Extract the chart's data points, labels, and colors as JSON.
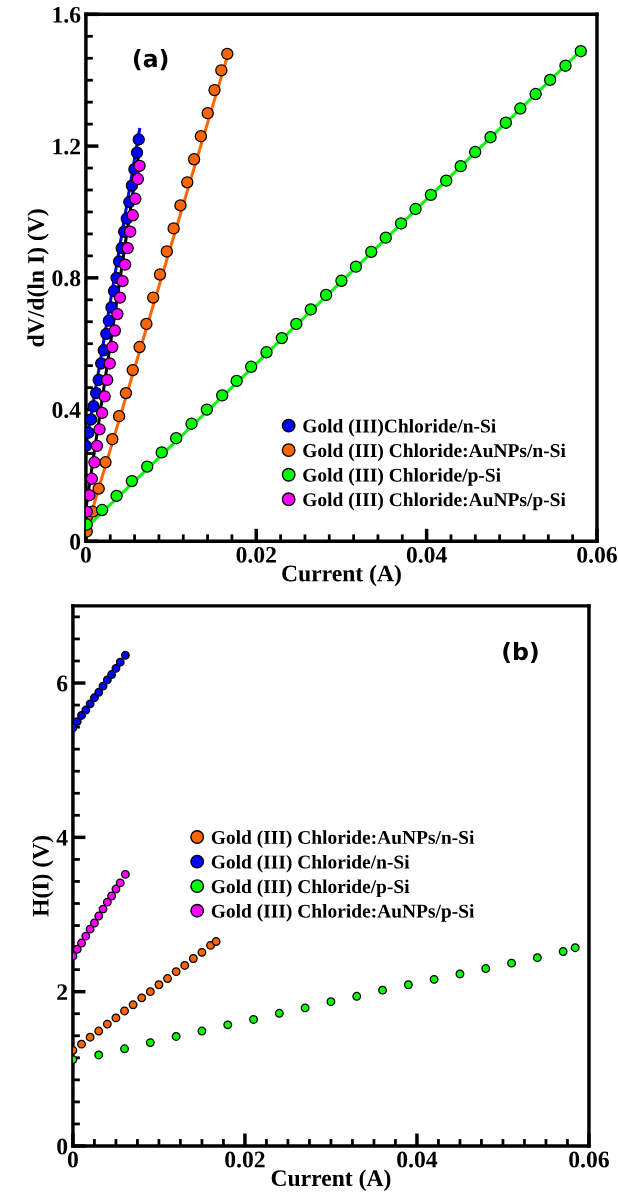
{
  "chart_data": [
    {
      "type": "scatter",
      "xlabel": "Current (A)",
      "ylabel": "dV/d(ln I) (V)",
      "annotations": [
        "(a)"
      ],
      "xlim": [
        0,
        0.06
      ],
      "xticks": [
        0,
        0.02,
        0.04,
        0.06
      ],
      "ylim": [
        0,
        1.6
      ],
      "yticks": [
        0,
        0.4,
        0.8,
        1.2,
        1.6
      ],
      "grid": false,
      "legend": "bottom right",
      "marker": "circle",
      "series": [
        {
          "type": "line",
          "marker": "none",
          "color": "#0000ff",
          "x": [
            0,
            0.0063
          ],
          "values": [
            0.29,
            1.25
          ]
        },
        {
          "type": "line",
          "marker": "none",
          "color": "#ff6600",
          "x": [
            0,
            0.0167
          ],
          "values": [
            0.03,
            1.48
          ]
        },
        {
          "type": "line",
          "marker": "none",
          "color": "#00ff00",
          "x": [
            0,
            0.0581
          ],
          "values": [
            0.04,
            1.49
          ]
        },
        {
          "type": "line",
          "marker": "none",
          "color": "#000000",
          "x": [
            0,
            0.0061
          ],
          "values": [
            0.1,
            1.16
          ]
        },
        {
          "name": "Gold (III)Chloride/n-Si",
          "color": "#0000ff",
          "x": [
            0,
            0.0003,
            0.0006,
            0.0009,
            0.0012,
            0.0015,
            0.0018,
            0.0021,
            0.0024,
            0.0027,
            0.003,
            0.0033,
            0.0036,
            0.0039,
            0.0042,
            0.0045,
            0.0048,
            0.0051,
            0.0054,
            0.0057,
            0.006,
            0.0062
          ],
          "values": [
            0.29,
            0.33,
            0.37,
            0.41,
            0.45,
            0.49,
            0.54,
            0.58,
            0.63,
            0.67,
            0.71,
            0.76,
            0.8,
            0.85,
            0.89,
            0.94,
            0.98,
            1.03,
            1.08,
            1.13,
            1.18,
            1.22
          ]
        },
        {
          "name": "Gold (III) Chloride:AuNPs/n-Si",
          "color": "#ff6600",
          "x": [
            0.0001,
            0.0008,
            0.0015,
            0.0023,
            0.0031,
            0.0039,
            0.0047,
            0.0055,
            0.0063,
            0.0071,
            0.0079,
            0.0087,
            0.0095,
            0.0103,
            0.0111,
            0.0119,
            0.0127,
            0.0135,
            0.0143,
            0.0151,
            0.0159,
            0.0166
          ],
          "values": [
            0.03,
            0.09,
            0.16,
            0.24,
            0.31,
            0.38,
            0.45,
            0.52,
            0.59,
            0.66,
            0.74,
            0.81,
            0.88,
            0.95,
            1.02,
            1.09,
            1.16,
            1.23,
            1.3,
            1.37,
            1.43,
            1.48
          ]
        },
        {
          "name": "Gold (III) Chloride/p-Si",
          "color": "#00ff00",
          "x": [
            0.0001,
            0.0019,
            0.0036,
            0.0054,
            0.0072,
            0.0089,
            0.0106,
            0.0124,
            0.0142,
            0.016,
            0.0177,
            0.0194,
            0.0212,
            0.023,
            0.0247,
            0.0264,
            0.0282,
            0.03,
            0.0317,
            0.0335,
            0.0352,
            0.037,
            0.0387,
            0.0405,
            0.0423,
            0.044,
            0.0457,
            0.0475,
            0.0493,
            0.051,
            0.0528,
            0.0545,
            0.0563,
            0.0581
          ],
          "values": [
            0.051,
            0.095,
            0.138,
            0.183,
            0.227,
            0.27,
            0.313,
            0.357,
            0.4,
            0.443,
            0.487,
            0.53,
            0.574,
            0.617,
            0.66,
            0.704,
            0.748,
            0.791,
            0.834,
            0.879,
            0.922,
            0.965,
            1.009,
            1.052,
            1.095,
            1.139,
            1.182,
            1.227,
            1.271,
            1.314,
            1.358,
            1.401,
            1.444,
            1.488
          ]
        },
        {
          "name": "Gold (III) Chloride:AuNPs/p-Si",
          "color": "#ff00ff",
          "x": [
            0.0001,
            0.0004,
            0.0007,
            0.001,
            0.0013,
            0.0016,
            0.0019,
            0.0022,
            0.0025,
            0.0028,
            0.0031,
            0.0034,
            0.0037,
            0.004,
            0.0043,
            0.0046,
            0.0049,
            0.0052,
            0.0055,
            0.0058,
            0.0061,
            0.0063
          ],
          "values": [
            0.09,
            0.14,
            0.19,
            0.24,
            0.29,
            0.34,
            0.39,
            0.44,
            0.49,
            0.54,
            0.59,
            0.64,
            0.69,
            0.74,
            0.79,
            0.84,
            0.89,
            0.94,
            0.99,
            1.04,
            1.1,
            1.14
          ]
        }
      ]
    },
    {
      "type": "scatter",
      "xlabel": "Current (A)",
      "ylabel": "H(I) (V)",
      "annotations": [
        "(b)"
      ],
      "xlim": [
        0,
        0.06
      ],
      "xticks": [
        0,
        0.02,
        0.04,
        0.06
      ],
      "ylim": [
        0,
        7
      ],
      "yticks": [
        0,
        2,
        4,
        6
      ],
      "grid": false,
      "legend": "center",
      "marker": "circle",
      "series": [
        {
          "name": "Gold (III) Chloride:AuNPs/n-Si",
          "color": "#ff6600",
          "x": [
            0,
            0.001,
            0.002,
            0.003,
            0.004,
            0.005,
            0.006,
            0.007,
            0.008,
            0.009,
            0.01,
            0.011,
            0.012,
            0.013,
            0.014,
            0.015,
            0.016,
            0.01665
          ],
          "values": [
            1.24,
            1.32,
            1.41,
            1.49,
            1.58,
            1.66,
            1.75,
            1.83,
            1.92,
            2.0,
            2.09,
            2.17,
            2.26,
            2.34,
            2.43,
            2.51,
            2.6,
            2.65
          ]
        },
        {
          "name": "Gold (III) Chloride/n-Si",
          "color": "#0000ff",
          "x": [
            0,
            0.0005,
            0.001,
            0.0015,
            0.002,
            0.0025,
            0.003,
            0.0035,
            0.004,
            0.0045,
            0.005,
            0.0055,
            0.0061
          ],
          "values": [
            5.42,
            5.5,
            5.58,
            5.65,
            5.73,
            5.81,
            5.88,
            5.96,
            6.04,
            6.11,
            6.19,
            6.27,
            6.36
          ]
        },
        {
          "name": "Gold (III) Chloride/p-Si",
          "color": "#00ff00",
          "x": [
            0,
            0.003,
            0.006,
            0.009,
            0.012,
            0.015,
            0.018,
            0.021,
            0.024,
            0.027,
            0.03,
            0.033,
            0.036,
            0.039,
            0.042,
            0.045,
            0.048,
            0.051,
            0.054,
            0.057,
            0.0584
          ],
          "values": [
            1.12,
            1.18,
            1.26,
            1.34,
            1.42,
            1.49,
            1.57,
            1.64,
            1.72,
            1.79,
            1.87,
            1.94,
            2.02,
            2.09,
            2.16,
            2.23,
            2.3,
            2.37,
            2.44,
            2.52,
            2.57
          ]
        },
        {
          "name": "Gold (III) Chloride:AuNPs/p-Si",
          "color": "#ff00ff",
          "x": [
            0,
            0.0005,
            0.001,
            0.0015,
            0.002,
            0.0025,
            0.003,
            0.0035,
            0.004,
            0.0045,
            0.005,
            0.0055,
            0.0061
          ],
          "values": [
            2.46,
            2.55,
            2.63,
            2.72,
            2.81,
            2.89,
            2.98,
            3.07,
            3.16,
            3.24,
            3.33,
            3.41,
            3.52
          ]
        }
      ]
    }
  ]
}
